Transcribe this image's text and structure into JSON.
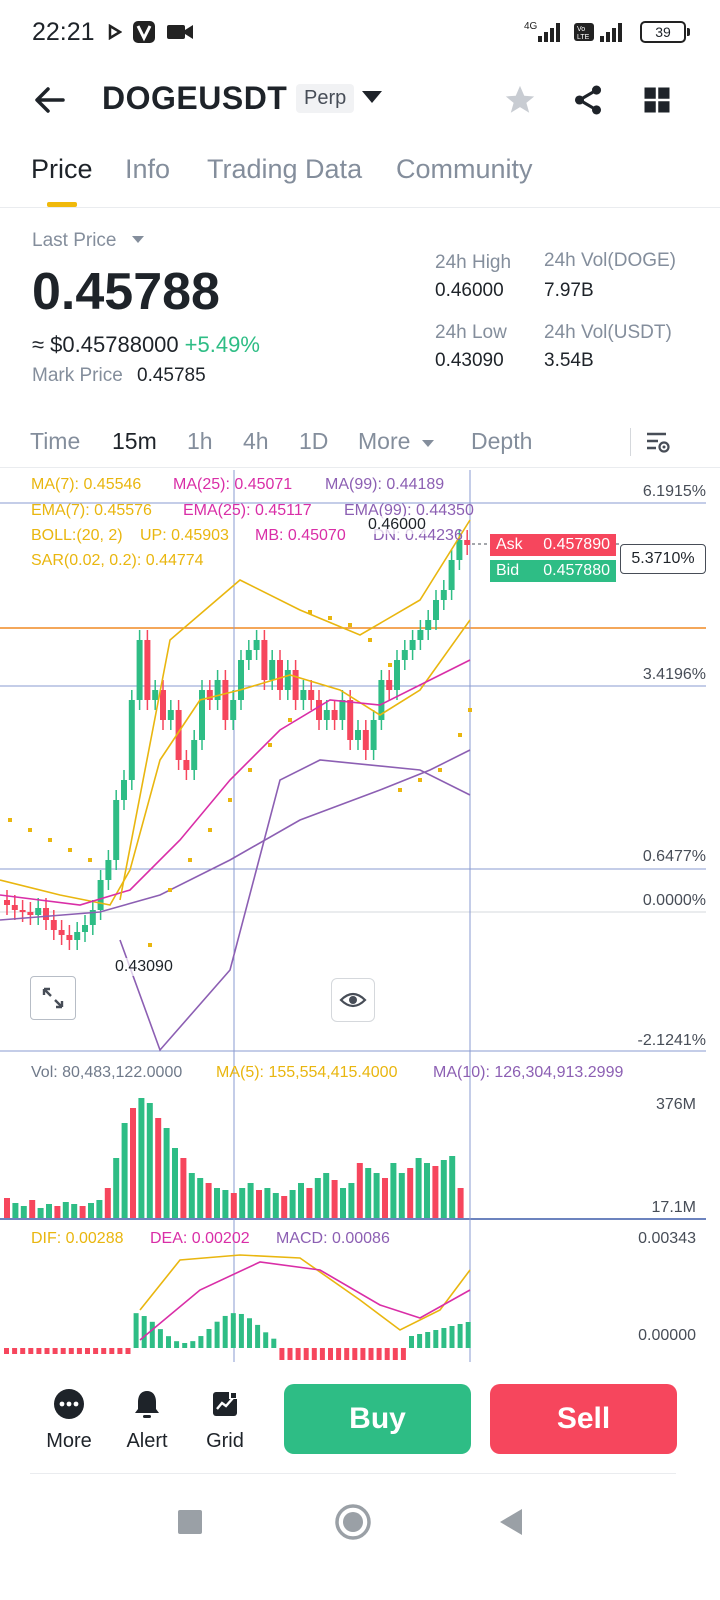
{
  "status_bar": {
    "time": "22:21",
    "network": "4G",
    "battery": "39"
  },
  "header": {
    "symbol": "DOGEUSDT",
    "contract_type": "Perp"
  },
  "tabs": [
    "Price",
    "Info",
    "Trading Data",
    "Community"
  ],
  "price": {
    "last_price_label": "Last Price",
    "last_price": "0.45788",
    "usd_price": "≈ $0.45788000",
    "change": "+5.49%",
    "mark_label": "Mark Price",
    "mark_value": "0.45785"
  },
  "stats": {
    "high_label": "24h High",
    "high": "0.46000",
    "low_label": "24h Low",
    "low": "0.43090",
    "vol_doge_label": "24h Vol(DOGE)",
    "vol_doge": "7.97B",
    "vol_usdt_label": "24h Vol(USDT)",
    "vol_usdt": "3.54B"
  },
  "intervals": [
    "Time",
    "15m",
    "1h",
    "4h",
    "1D",
    "More",
    "Depth"
  ],
  "indicators": {
    "ma7": "MA(7): 0.45546",
    "ma25": "MA(25): 0.45071",
    "ma99": "MA(99): 0.44189",
    "ema7": "EMA(7): 0.45576",
    "ema25": "EMA(25): 0.45117",
    "ema99": "EMA(99): 0.44350",
    "boll": "BOLL:(20, 2)",
    "boll_up": "UP: 0.45903",
    "boll_mb": "MB: 0.45070",
    "boll_dn": "DN: 0.44236",
    "sar": "SAR(0.02, 0.2): 0.44774"
  },
  "chart_labels": {
    "high_marker": "0.46000",
    "low_marker": "0.43090",
    "ask_label": "Ask",
    "ask": "0.457890",
    "bid_label": "Bid",
    "bid": "0.457880",
    "current_pct": "5.3710%",
    "pct_scale": [
      "6.1915%",
      "3.4196%",
      "0.6477%",
      "0.0000%",
      "-2.1241%"
    ]
  },
  "volume": {
    "vol": "Vol: 80,483,122.0000",
    "ma5": "MA(5): 155,554,415.4000",
    "ma10": "MA(10): 126,304,913.2999",
    "axis_top": "376M",
    "axis_bottom": "17.1M"
  },
  "macd": {
    "dif": "DIF: 0.00288",
    "dea": "DEA: 0.00202",
    "macd": "MACD: 0.00086",
    "axis_top": "0.00343",
    "axis_zero": "0.00000"
  },
  "bottom": {
    "more": "More",
    "alert": "Alert",
    "grid": "Grid",
    "buy": "Buy",
    "sell": "Sell"
  },
  "colors": {
    "up": "#2ebd85",
    "down": "#f6465d",
    "accent": "#f0b90b",
    "ma7": "#e9b60f",
    "ma25": "#d92ea7",
    "ma99": "#8c5fb3"
  }
}
